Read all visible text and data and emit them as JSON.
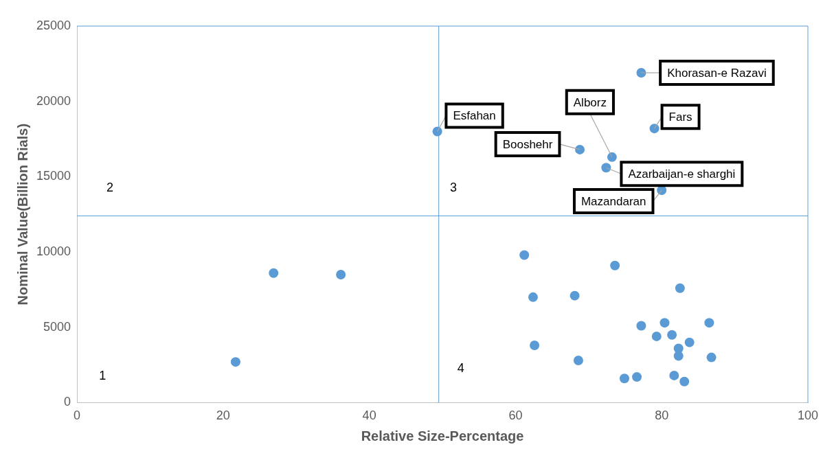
{
  "chart_data": {
    "type": "scatter",
    "xlabel": "Relative Size-Percentage",
    "ylabel": "Nominal Value(Billion Rials)",
    "xlim": [
      0,
      100
    ],
    "xticks": [
      0,
      20,
      40,
      60,
      80,
      100
    ],
    "ylim": [
      0,
      25000
    ],
    "yticks": [
      0,
      5000,
      10000,
      15000,
      20000,
      25000
    ],
    "grid": false,
    "legend": false,
    "marker": "circle",
    "series": [
      {
        "color": "#5b9bd5",
        "x": [
          77.2,
          49.3,
          79.0,
          68.8,
          73.2,
          72.4,
          80.0,
          26.9,
          36.1,
          21.7,
          61.2,
          73.6,
          62.4,
          68.1,
          82.5,
          77.2,
          80.4,
          86.5,
          79.3,
          81.4,
          83.8,
          82.3,
          82.3,
          62.6,
          68.6,
          86.8,
          74.9,
          76.6,
          81.7,
          83.1
        ],
        "values": [
          21900,
          18000,
          18200,
          16800,
          16300,
          15600,
          14100,
          8600,
          8500,
          2700,
          9800,
          9100,
          7000,
          7100,
          7600,
          5100,
          5300,
          5300,
          4400,
          4500,
          4000,
          3600,
          3100,
          3800,
          2800,
          3000,
          1600,
          1700,
          1800,
          1400
        ]
      }
    ],
    "ref_lines": [
      {
        "axis": "x",
        "value": 49.5,
        "color": "#5b9bd5"
      },
      {
        "axis": "y",
        "value": 12400,
        "color": "#5b9bd5"
      }
    ],
    "annotations": [
      {
        "text": "Khorasan-e Razavi",
        "x": 77.2,
        "y": 21900
      },
      {
        "text": "Esfahan",
        "x": 49.3,
        "y": 18000
      },
      {
        "text": "Fars",
        "x": 79.0,
        "y": 18200
      },
      {
        "text": "Booshehr",
        "x": 68.8,
        "y": 16800
      },
      {
        "text": "Alborz",
        "x": 73.2,
        "y": 16300
      },
      {
        "text": "Azarbaijan-e sharghi",
        "x": 72.4,
        "y": 15600
      },
      {
        "text": "Mazandaran",
        "x": 80.0,
        "y": 14100
      },
      "1",
      "2",
      "3",
      "4"
    ]
  }
}
